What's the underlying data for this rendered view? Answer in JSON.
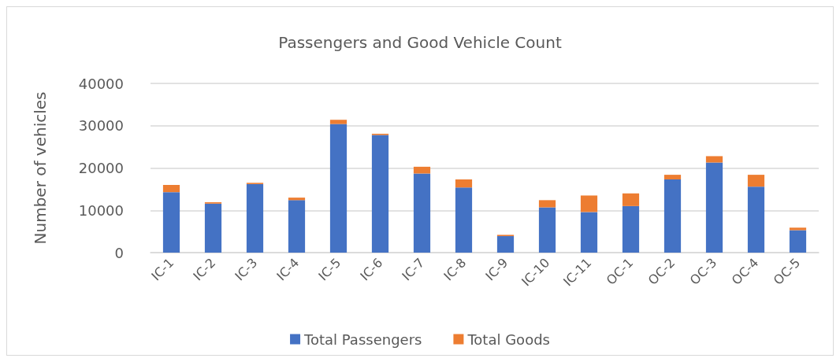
{
  "chart_data": {
    "type": "bar",
    "title": "Passengers and Good Vehicle Count",
    "ylabel": "Number of vehicles",
    "categories": [
      "IC-1",
      "IC-2",
      "IC-3",
      "IC-4",
      "IC-5",
      "IC-6",
      "IC-7",
      "IC-8",
      "IC-9",
      "IC-10",
      "IC-11",
      "OC-1",
      "OC-2",
      "OC-3",
      "OC-4",
      "OC-5"
    ],
    "series": [
      {
        "name": "Total Passengers",
        "color": "#4472c4",
        "values": [
          14300,
          11600,
          16200,
          12400,
          30400,
          27800,
          18700,
          15400,
          3900,
          10700,
          9600,
          11000,
          17300,
          21300,
          15600,
          5300
        ]
      },
      {
        "name": "Total Goods",
        "color": "#ed7d31",
        "values": [
          1700,
          300,
          300,
          600,
          1000,
          300,
          1600,
          1900,
          300,
          1700,
          3900,
          3000,
          1100,
          1500,
          2800,
          600
        ]
      }
    ],
    "stacked": true,
    "ylim": [
      0,
      40000
    ],
    "yticks": [
      0,
      10000,
      20000,
      30000,
      40000
    ],
    "grid": "y",
    "legend": "bottom"
  }
}
